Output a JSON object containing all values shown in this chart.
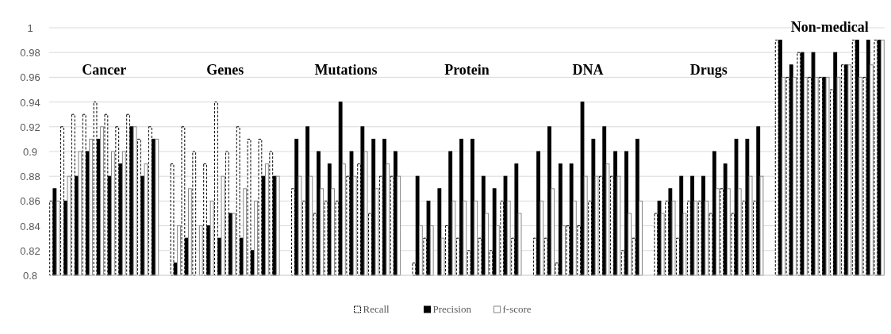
{
  "chart_data": {
    "type": "bar",
    "categories": [
      null,
      null,
      null,
      null,
      null,
      null,
      null,
      null,
      null,
      null,
      null,
      null,
      null,
      null,
      null,
      null,
      null,
      null,
      null,
      null,
      null,
      null,
      null,
      null,
      null,
      null,
      null,
      null,
      null,
      null,
      null,
      null,
      null,
      null,
      null,
      null,
      null,
      null,
      null,
      null,
      null,
      null,
      null,
      null,
      null,
      null,
      null,
      null,
      null,
      null,
      null,
      null,
      null,
      null,
      null,
      null,
      null,
      null,
      null,
      null,
      null,
      null,
      null,
      null,
      null,
      null,
      null,
      null,
      null,
      null,
      null,
      null,
      null,
      null,
      null,
      null
    ],
    "series": [
      {
        "name": "Recall",
        "color": "#ffffff",
        "line_style": "dashed",
        "values": [
          0.86,
          0.92,
          0.93,
          0.93,
          0.94,
          0.93,
          0.92,
          0.93,
          0.91,
          0.92,
          null,
          0.89,
          0.92,
          0.9,
          0.89,
          0.94,
          0.9,
          0.92,
          0.91,
          0.91,
          0.9,
          null,
          0.87,
          0.86,
          0.85,
          0.86,
          0.86,
          0.88,
          0.89,
          0.85,
          0.88,
          0.88,
          null,
          0.81,
          0.83,
          0.8,
          0.84,
          0.83,
          0.82,
          0.83,
          0.82,
          0.86,
          0.83,
          null,
          0.83,
          0.83,
          0.81,
          0.84,
          0.84,
          0.86,
          0.88,
          0.88,
          0.82,
          0.83,
          null,
          0.85,
          0.86,
          0.83,
          0.86,
          0.86,
          0.85,
          0.87,
          0.85,
          0.86,
          0.86,
          null,
          0.99,
          0.96,
          0.98,
          0.96,
          0.96,
          0.95,
          0.97,
          0.99,
          0.96,
          0.99
        ]
      },
      {
        "name": "Precision",
        "color": "#000000",
        "values": [
          0.87,
          0.86,
          0.88,
          0.9,
          0.91,
          0.88,
          0.89,
          0.92,
          0.88,
          0.91,
          null,
          0.81,
          0.83,
          0.8,
          0.84,
          0.83,
          0.85,
          0.83,
          0.82,
          0.88,
          0.88,
          null,
          0.91,
          0.92,
          0.9,
          0.89,
          0.94,
          0.9,
          0.92,
          0.91,
          0.91,
          0.9,
          null,
          0.88,
          0.86,
          0.87,
          0.9,
          0.91,
          0.91,
          0.88,
          0.87,
          0.88,
          0.89,
          null,
          0.9,
          0.92,
          0.89,
          0.89,
          0.94,
          0.91,
          0.92,
          0.9,
          0.9,
          0.91,
          null,
          0.86,
          0.87,
          0.88,
          0.88,
          0.88,
          0.9,
          0.89,
          0.91,
          0.91,
          0.92,
          null,
          0.99,
          0.97,
          0.98,
          0.98,
          0.96,
          0.98,
          0.97,
          0.99,
          0.99,
          0.99
        ]
      },
      {
        "name": "f-score",
        "color": "#ffffff",
        "values": [
          0.86,
          0.88,
          0.9,
          0.91,
          0.92,
          0.9,
          0.9,
          0.92,
          0.89,
          0.91,
          null,
          0.84,
          0.87,
          0.84,
          0.86,
          0.88,
          0.85,
          0.87,
          0.86,
          0.89,
          0.88,
          null,
          0.88,
          0.88,
          0.87,
          0.87,
          0.89,
          0.88,
          0.9,
          0.87,
          0.89,
          0.88,
          null,
          0.84,
          0.84,
          0.83,
          0.86,
          0.86,
          0.86,
          0.85,
          0.84,
          0.86,
          0.85,
          null,
          0.86,
          0.87,
          0.84,
          0.86,
          0.88,
          0.88,
          0.89,
          0.88,
          0.85,
          0.86,
          null,
          0.85,
          0.86,
          0.85,
          0.86,
          0.86,
          0.87,
          0.87,
          0.87,
          0.88,
          0.88,
          null,
          0.96,
          0.96,
          0.96,
          0.96,
          0.96,
          0.96,
          0.97,
          0.96,
          0.97,
          0.99
        ]
      }
    ],
    "annotations": [
      "Cancer",
      "Genes",
      "Mutations",
      "Protein",
      "DNA",
      "Drugs",
      "Non-medical"
    ],
    "ylim": [
      0.8,
      1
    ],
    "yticks": [
      0.8,
      0.82,
      0.84,
      0.86,
      0.88,
      0.9,
      0.92,
      0.94,
      0.96,
      0.98,
      1
    ],
    "grid": "y",
    "legend": "bottom"
  }
}
